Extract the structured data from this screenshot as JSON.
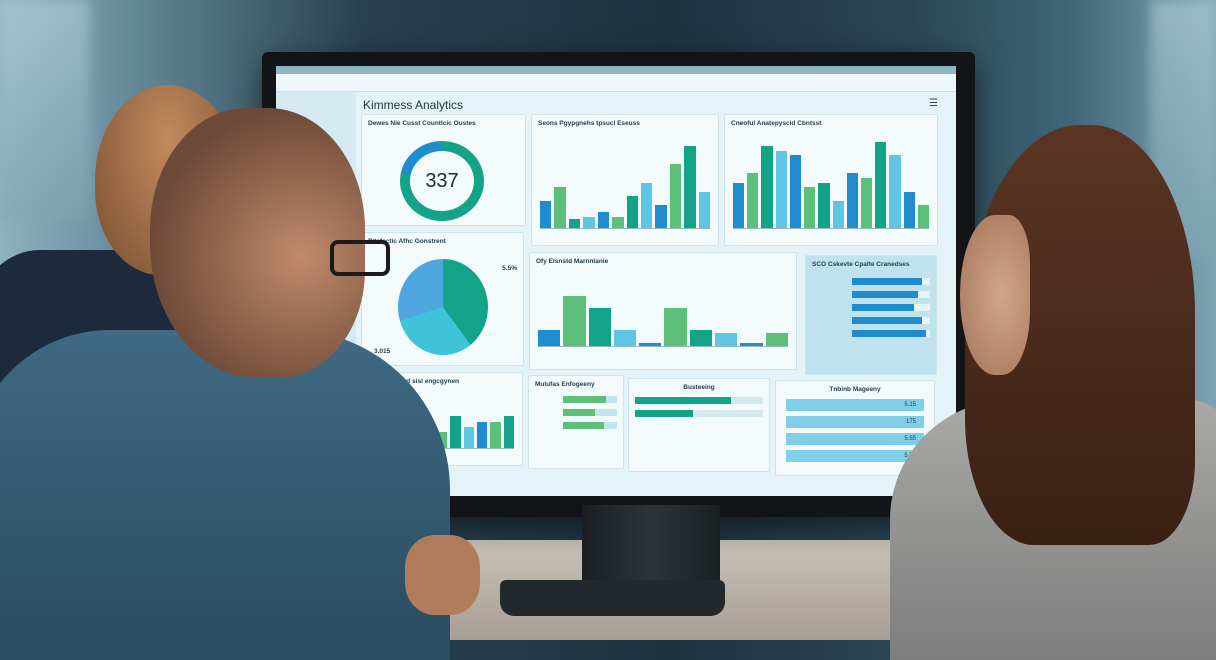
{
  "dashboard": {
    "title": "Kimmess Analytics",
    "donut_panel": {
      "heading": "Dewes Nie Cusst Countlcic Oustes",
      "value": "337",
      "fraction": 0.78
    },
    "bar_panel_1": {
      "heading": "Seons Pgypgnehs tpsucl Eseuss",
      "levels": [
        0.3,
        0.45,
        0.1,
        0.12,
        0.18,
        0.12,
        0.35,
        0.5,
        0.25,
        0.7,
        0.9,
        0.4
      ]
    },
    "bar_panel_2": {
      "heading": "Cneoful Anatepyscid Cbntsst",
      "levels": [
        0.5,
        0.6,
        0.9,
        0.85,
        0.8,
        0.45,
        0.5,
        0.3,
        0.6,
        0.55,
        0.95,
        0.8,
        0.4,
        0.25
      ]
    },
    "pie_panel": {
      "heading": "Pitsfectic Afhc Gonstrent",
      "label_a": "5.5%",
      "label_b": "3.015"
    },
    "bar_panel_3": {
      "heading": "Ofy Elsnstd Marnnlanie",
      "levels": [
        0.25,
        0.8,
        0.6,
        0.25,
        0.05,
        0.6,
        0.25,
        0.2,
        0.05,
        0.2
      ]
    },
    "hbar_panel": {
      "heading": "SCO Cskevte Cpalte Cranedses",
      "levels": [
        0.9,
        0.85,
        0.8,
        0.9,
        0.95
      ]
    },
    "bar_panel_4": {
      "heading": "Pasanennsnd sisl engcgynen",
      "levels": [
        0.3,
        0.4,
        0.8,
        0.6,
        0.5,
        0.3,
        0.6,
        0.4,
        0.5,
        0.5,
        0.6
      ]
    },
    "list_panel": {
      "heading": "Mulufas Enfogeeny",
      "levels": [
        0.8,
        0.6,
        0.75
      ]
    },
    "progress_panel": {
      "heading": "Busteeing",
      "levels": [
        0.75,
        0.45
      ]
    },
    "table_panel": {
      "heading": "Tnbinb Mageeny",
      "values": [
        "5.15",
        "175",
        "5.55",
        "5.57"
      ]
    }
  },
  "colors": {
    "teal": "#13a389",
    "blue": "#1e8ccd",
    "light_blue": "#5fc5e5",
    "green": "#5cc07a"
  }
}
